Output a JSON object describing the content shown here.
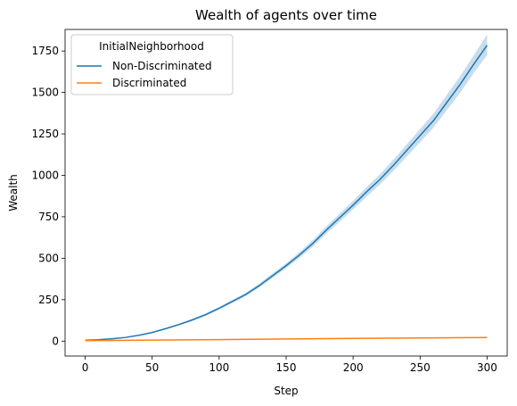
{
  "chart_data": {
    "type": "line",
    "title": "Wealth of agents over time",
    "xlabel": "Step",
    "ylabel": "Wealth",
    "xlim": [
      -15,
      315
    ],
    "ylim": [
      -90,
      1880
    ],
    "xticks": [
      0,
      50,
      100,
      150,
      200,
      250,
      300
    ],
    "yticks": [
      0,
      250,
      500,
      750,
      1000,
      1250,
      1500,
      1750
    ],
    "grid": false,
    "legend": {
      "title": "InitialNeighborhood",
      "placement": "top-left"
    },
    "series": [
      {
        "name": "Non-Discriminated",
        "color": "#1f77b4",
        "band_color": "#1f77b4",
        "x": [
          0,
          10,
          20,
          30,
          40,
          50,
          60,
          70,
          80,
          90,
          100,
          110,
          120,
          130,
          140,
          150,
          160,
          170,
          180,
          190,
          200,
          210,
          220,
          230,
          240,
          250,
          260,
          270,
          280,
          290,
          300
        ],
        "values": [
          5,
          8,
          14,
          22,
          35,
          52,
          75,
          100,
          128,
          160,
          198,
          240,
          282,
          335,
          395,
          455,
          520,
          590,
          670,
          745,
          820,
          900,
          975,
          1060,
          1150,
          1240,
          1330,
          1440,
          1550,
          1670,
          1785
        ],
        "lower": [
          5,
          8,
          13,
          21,
          33,
          49,
          71,
          95,
          122,
          153,
          190,
          231,
          272,
          323,
          381,
          440,
          503,
          571,
          648,
          721,
          794,
          871,
          944,
          1026,
          1113,
          1200,
          1288,
          1394,
          1500,
          1617,
          1725
        ],
        "upper": [
          5,
          8,
          15,
          23,
          37,
          55,
          79,
          105,
          134,
          167,
          206,
          249,
          292,
          347,
          409,
          470,
          537,
          609,
          692,
          769,
          846,
          929,
          1006,
          1094,
          1187,
          1280,
          1372,
          1486,
          1600,
          1723,
          1850
        ]
      },
      {
        "name": "Discriminated",
        "color": "#ff7f0e",
        "x": [
          0,
          50,
          100,
          150,
          200,
          250,
          300
        ],
        "values": [
          3,
          6,
          9,
          13,
          16,
          19,
          22
        ]
      }
    ]
  }
}
